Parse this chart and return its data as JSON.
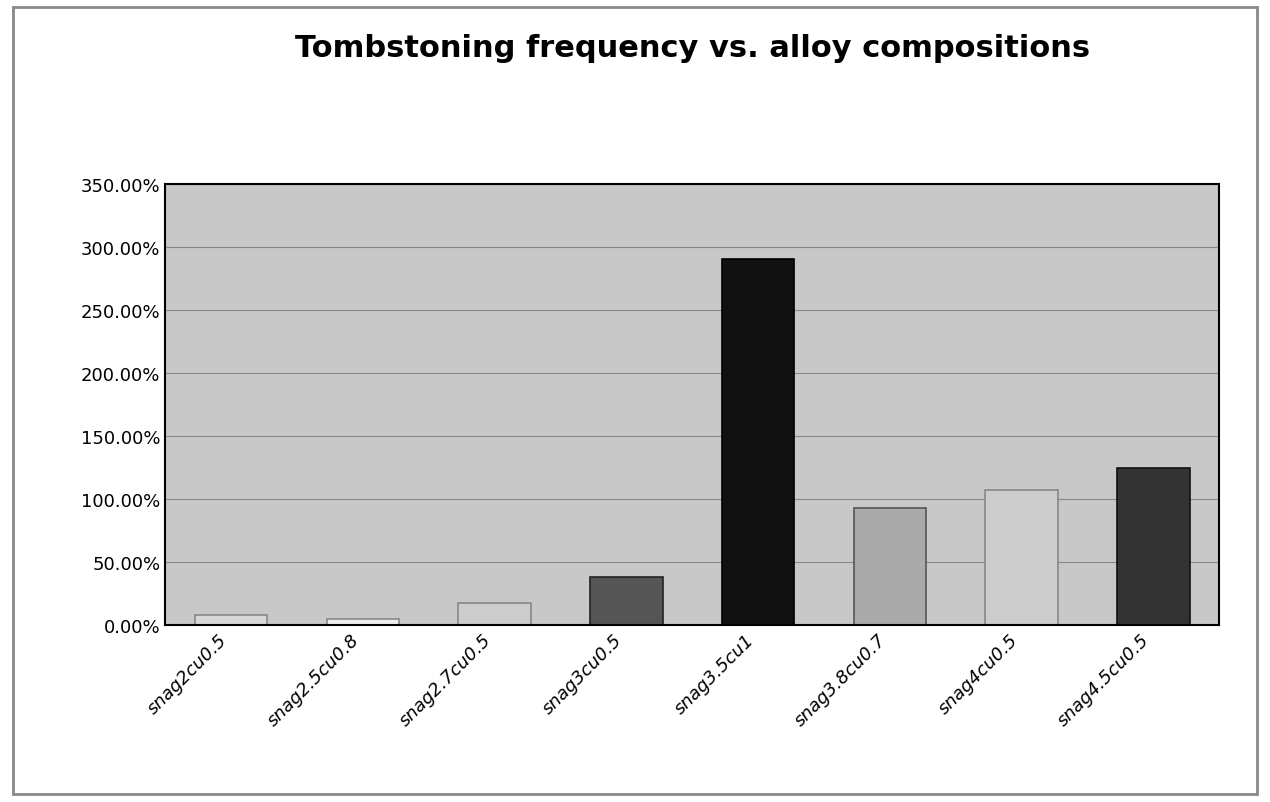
{
  "title": "Tombstoning frequency vs. alloy compositions",
  "categories": [
    "snag2cu0.5",
    "snag2.5cu0.8",
    "snag2.7cu0.5",
    "snag3cu0.5",
    "snag3.5cu1",
    "snag3.8cu0.7",
    "snag4cu0.5",
    "snag4.5cu0.5"
  ],
  "values": [
    8.0,
    5.0,
    18.0,
    38.0,
    290.0,
    93.0,
    107.0,
    125.0
  ],
  "ylim": [
    0,
    350
  ],
  "yticks": [
    0,
    50,
    100,
    150,
    200,
    250,
    300,
    350
  ],
  "ytick_labels": [
    "0.00%",
    "50.00%",
    "100.00%",
    "150.00%",
    "200.00%",
    "250.00%",
    "300.00%",
    "350.00%"
  ],
  "bar_colors": [
    "#d8d8d8",
    "#efefef",
    "#cccccc",
    "#555555",
    "#111111",
    "#aaaaaa",
    "#cccccc",
    "#333333"
  ],
  "bar_edge_colors": [
    "#888888",
    "#888888",
    "#888888",
    "#222222",
    "#000000",
    "#555555",
    "#888888",
    "#111111"
  ],
  "title_fontsize": 22,
  "tick_fontsize": 13,
  "xlabel_fontsize": 13,
  "background_color": "#ffffff",
  "plot_bg_color": "#c8c8c8",
  "grid_color": "#888888",
  "outer_border_color": "#aaaaaa"
}
